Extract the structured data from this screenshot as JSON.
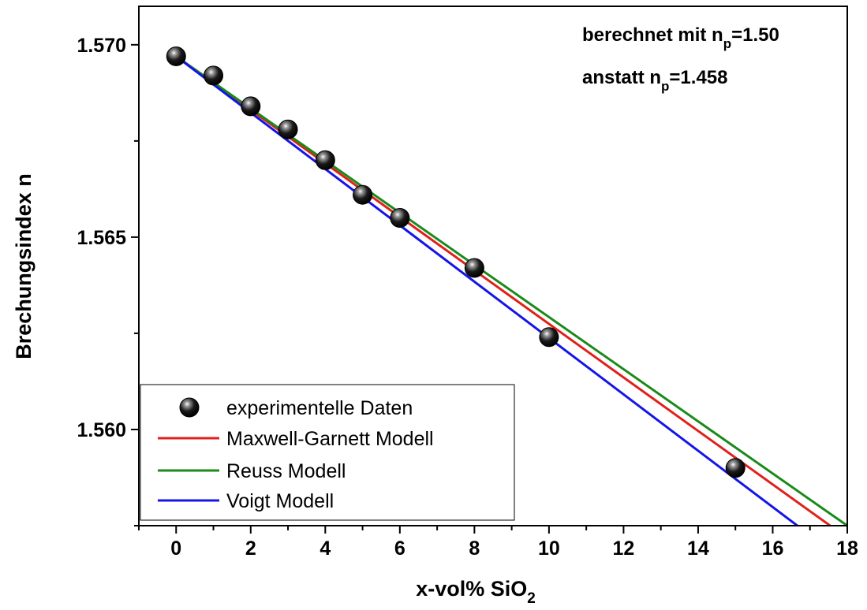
{
  "chart_data": {
    "type": "scatter",
    "xlabel": "x-vol% SiO",
    "xlabel_sub": "2",
    "ylabel": "Brechungsindex n",
    "xlim": [
      -1,
      18
    ],
    "ylim": [
      1.5575,
      1.571
    ],
    "x_ticks": [
      0,
      2,
      4,
      6,
      8,
      10,
      12,
      14,
      16,
      18
    ],
    "y_ticks": [
      1.56,
      1.565,
      1.57
    ],
    "y_tick_labels": [
      "1.560",
      "1.565",
      "1.570"
    ],
    "y_minor_ticks": [
      1.5575,
      1.5625,
      1.5675
    ],
    "annotation": {
      "line1": {
        "text": "berechnet mit n",
        "sub": "p",
        "suffix": "=1.50"
      },
      "line2": {
        "text": "anstatt n",
        "sub": "p",
        "suffix": "=1.458"
      }
    },
    "legend_position": "bottom-left",
    "series": [
      {
        "name": "experimentelle Daten",
        "kind": "markers",
        "color": "#000000",
        "points": [
          [
            0,
            1.5697
          ],
          [
            1,
            1.5692
          ],
          [
            2,
            1.5684
          ],
          [
            3,
            1.5678
          ],
          [
            4,
            1.567
          ],
          [
            5,
            1.5661
          ],
          [
            6,
            1.5655
          ],
          [
            8,
            1.5642
          ],
          [
            10,
            1.5624
          ],
          [
            15,
            1.559
          ]
        ]
      },
      {
        "name": "Maxwell-Garnett Modell",
        "kind": "line",
        "color": "#e0201b",
        "points": [
          [
            0,
            1.5697
          ],
          [
            17.54,
            1.5575
          ]
        ]
      },
      {
        "name": "Reuss Modell",
        "kind": "line",
        "color": "#1a8a1a",
        "points": [
          [
            0,
            1.5697
          ],
          [
            18.0,
            1.5575
          ]
        ]
      },
      {
        "name": "Voigt Modell",
        "kind": "line",
        "color": "#1515e8",
        "points": [
          [
            0,
            1.5697
          ],
          [
            16.66,
            1.5575
          ]
        ]
      }
    ]
  }
}
